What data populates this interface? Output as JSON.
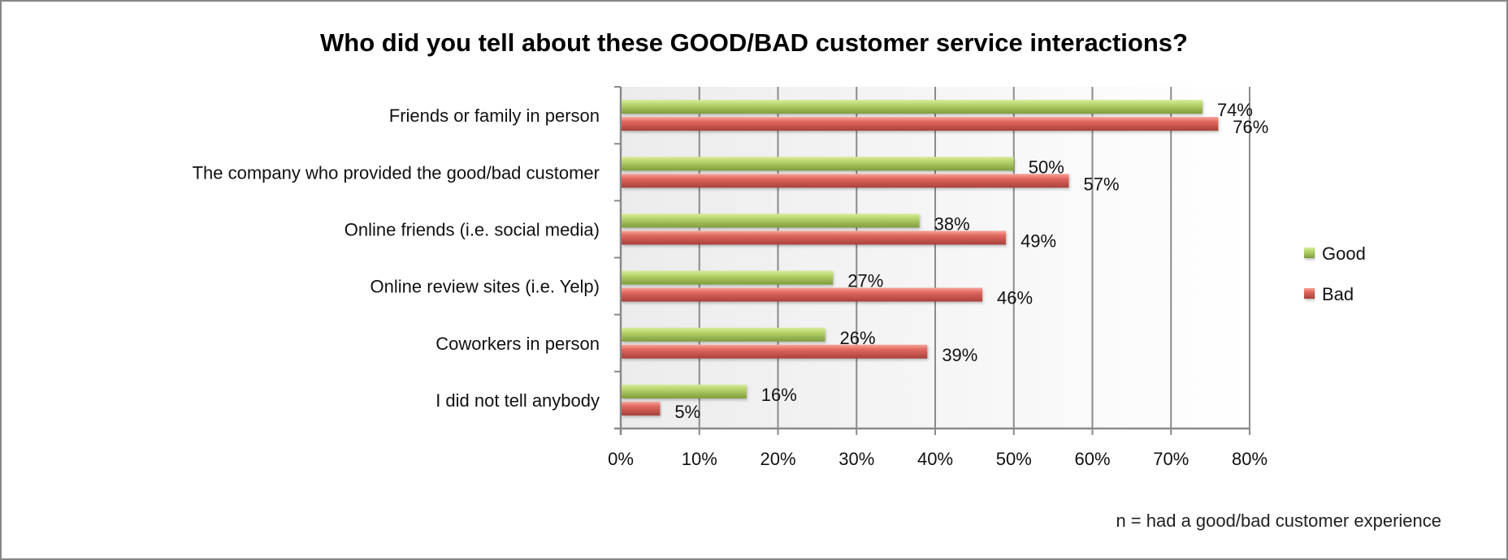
{
  "chart_data": {
    "type": "bar",
    "orientation": "horizontal",
    "title": "Who did you tell about these GOOD/BAD customer service interactions?",
    "categories": [
      "Friends or family in person",
      "The company who provided the good/bad customer",
      "Online friends (i.e. social media)",
      "Online review sites (i.e. Yelp)",
      "Coworkers in person",
      "I did not tell anybody"
    ],
    "series": [
      {
        "name": "Good",
        "color": "#9bbb59",
        "values": [
          74,
          50,
          38,
          27,
          26,
          16
        ],
        "labels": [
          "74%",
          "50%",
          "38%",
          "27%",
          "26%",
          "16%"
        ]
      },
      {
        "name": "Bad",
        "color": "#d9534f",
        "values": [
          76,
          57,
          49,
          46,
          39,
          5
        ],
        "labels": [
          "76%",
          "57%",
          "49%",
          "46%",
          "39%",
          "5%"
        ]
      }
    ],
    "xlabel": "",
    "ylabel": "",
    "xlim": [
      0,
      80
    ],
    "xticks": [
      0,
      10,
      20,
      30,
      40,
      50,
      60,
      70,
      80
    ],
    "xtick_labels": [
      "0%",
      "10%",
      "20%",
      "30%",
      "40%",
      "50%",
      "60%",
      "70%",
      "80%"
    ],
    "grid": true,
    "legend": {
      "placement": "right",
      "entries": [
        "Good",
        "Bad"
      ]
    },
    "footnote": "n = had a good/bad customer experience"
  }
}
